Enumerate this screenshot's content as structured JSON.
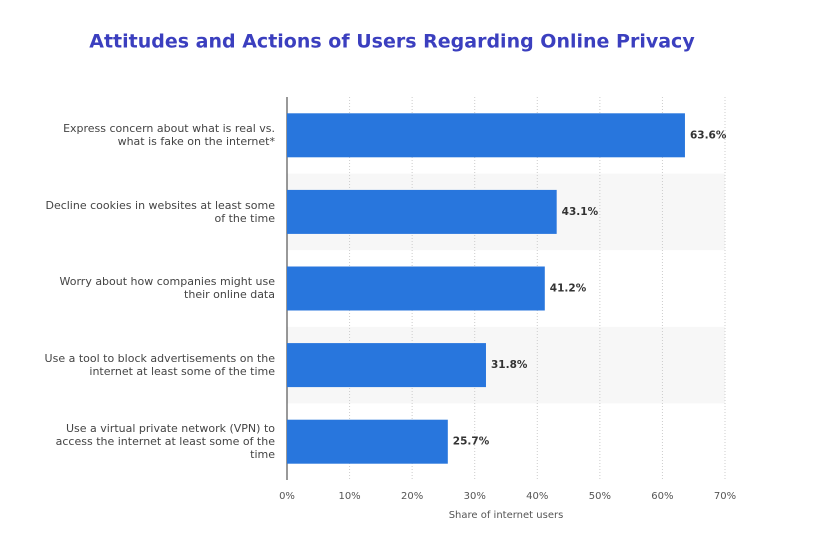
{
  "chart_data": {
    "type": "bar",
    "orientation": "horizontal",
    "title": "Attitudes and Actions of Users Regarding Online Privacy",
    "x_label": "Share of internet users",
    "categories": [
      "Express concern about what is real vs. what is fake on the internet*",
      "Decline cookies in websites at least some of the time",
      "Worry about how companies might use their online data",
      "Use a tool to block advertisements on the internet at least some of the time",
      "Use a virtual private network (VPN) to access the internet at least some of the time"
    ],
    "values": [
      63.6,
      43.1,
      41.2,
      31.8,
      25.7
    ],
    "value_labels": [
      "63.6%",
      "43.1%",
      "41.2%",
      "31.8%",
      "25.7%"
    ],
    "color": "#2876dd",
    "xlim": [
      0,
      70
    ],
    "xticks": [
      {
        "value": 0,
        "label": "0%"
      },
      {
        "value": 10,
        "label": "10%"
      },
      {
        "value": 20,
        "label": "20%"
      },
      {
        "value": 30,
        "label": "30%"
      },
      {
        "value": 40,
        "label": "40%"
      },
      {
        "value": 50,
        "label": "50%"
      },
      {
        "value": 60,
        "label": "60%"
      },
      {
        "value": 70,
        "label": "70%"
      }
    ],
    "grid": true
  }
}
